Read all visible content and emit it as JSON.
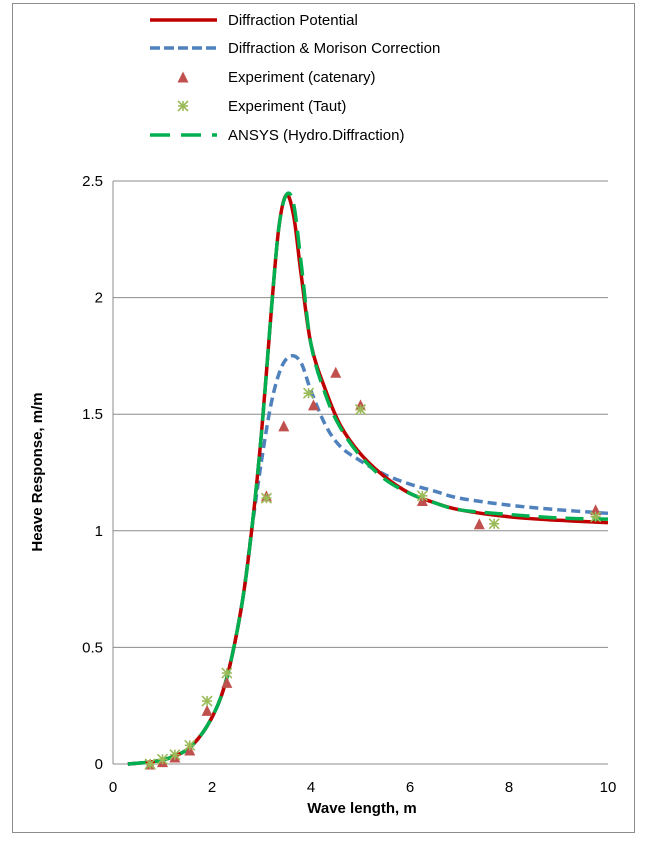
{
  "chart_data": {
    "type": "line",
    "title": "",
    "xlabel": "Wave length, m",
    "ylabel": "Heave Response, m/m",
    "xlim": [
      0,
      10
    ],
    "ylim": [
      0,
      2.5
    ],
    "xticks": [
      0,
      2,
      4,
      6,
      8,
      10
    ],
    "yticks": [
      0,
      0.5,
      1,
      1.5,
      2,
      2.5
    ],
    "yticklabels": [
      "0",
      "0.5",
      "1",
      "1.5",
      "2",
      "2.5"
    ],
    "xticklabels": [
      "0",
      "2",
      "4",
      "6",
      "8",
      "10"
    ],
    "grid": "horizontal",
    "legend_position": "top",
    "series": [
      {
        "name": "Diffraction Potential",
        "kind": "line",
        "style": "solid",
        "color": "#c00000",
        "x": [
          0.3,
          0.8,
          1.2,
          1.6,
          2.0,
          2.3,
          2.6,
          2.8,
          3.0,
          3.2,
          3.35,
          3.5,
          3.65,
          3.8,
          4.0,
          4.3,
          4.6,
          5.0,
          5.5,
          6.0,
          6.5,
          7.0,
          8.0,
          9.0,
          10.0
        ],
        "y": [
          0.0,
          0.01,
          0.03,
          0.08,
          0.2,
          0.37,
          0.68,
          1.0,
          1.42,
          1.95,
          2.3,
          2.44,
          2.35,
          2.1,
          1.8,
          1.6,
          1.45,
          1.33,
          1.23,
          1.16,
          1.12,
          1.09,
          1.06,
          1.045,
          1.035
        ]
      },
      {
        "name": "Diffraction & Morison Correction",
        "kind": "line",
        "style": "dashed",
        "color": "#4f81bd",
        "x": [
          0.3,
          0.8,
          1.2,
          1.6,
          2.0,
          2.3,
          2.6,
          2.8,
          3.0,
          3.2,
          3.4,
          3.6,
          3.8,
          4.0,
          4.3,
          4.6,
          5.0,
          5.5,
          6.0,
          6.5,
          7.0,
          8.0,
          9.0,
          10.0
        ],
        "y": [
          0.0,
          0.01,
          0.03,
          0.08,
          0.2,
          0.37,
          0.68,
          1.0,
          1.3,
          1.55,
          1.7,
          1.75,
          1.72,
          1.6,
          1.45,
          1.36,
          1.3,
          1.24,
          1.2,
          1.17,
          1.14,
          1.11,
          1.09,
          1.075
        ]
      },
      {
        "name": "ANSYS (Hydro.Diffraction)",
        "kind": "line",
        "style": "long-dash",
        "color": "#00b050",
        "x": [
          0.3,
          0.8,
          1.2,
          1.6,
          2.0,
          2.3,
          2.6,
          2.8,
          3.0,
          3.2,
          3.35,
          3.5,
          3.65,
          3.8,
          4.0,
          4.3,
          4.6,
          5.0,
          5.5,
          6.0,
          6.5,
          7.0,
          8.0,
          9.0,
          10.0
        ],
        "y": [
          0.0,
          0.01,
          0.03,
          0.08,
          0.2,
          0.37,
          0.68,
          1.0,
          1.42,
          1.95,
          2.3,
          2.44,
          2.4,
          2.15,
          1.8,
          1.58,
          1.44,
          1.32,
          1.22,
          1.16,
          1.12,
          1.09,
          1.07,
          1.055,
          1.05
        ]
      },
      {
        "name": "Experiment (catenary)",
        "kind": "scatter",
        "marker": "triangle",
        "color": "#c0504d",
        "x": [
          0.75,
          1.0,
          1.25,
          1.55,
          1.9,
          2.3,
          3.1,
          3.45,
          4.05,
          4.5,
          5.0,
          6.25,
          7.4,
          9.75
        ],
        "y": [
          0.0,
          0.01,
          0.03,
          0.06,
          0.23,
          0.35,
          1.15,
          1.45,
          1.54,
          1.68,
          1.54,
          1.13,
          1.03,
          1.09
        ]
      },
      {
        "name": "Experiment (Taut)",
        "kind": "scatter",
        "marker": "star",
        "color": "#9bbb59",
        "x": [
          0.75,
          1.0,
          1.25,
          1.55,
          1.9,
          2.3,
          3.1,
          3.95,
          5.0,
          6.25,
          7.7,
          9.75
        ],
        "y": [
          0.0,
          0.02,
          0.04,
          0.08,
          0.27,
          0.39,
          1.14,
          1.59,
          1.52,
          1.15,
          1.03,
          1.06
        ]
      }
    ]
  }
}
